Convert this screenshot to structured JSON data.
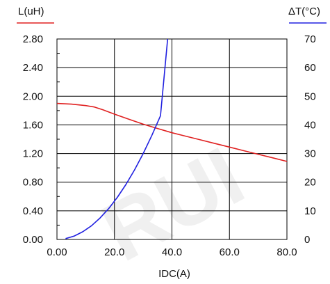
{
  "chart_data": {
    "type": "line",
    "title": "",
    "xlabel": "IDC(A)",
    "ylabel_left": "L(uH)",
    "ylabel_right": "ΔT(°C)",
    "x_ticks": [
      "0.00",
      "20.0",
      "40.0",
      "60.0",
      "80.0"
    ],
    "y_left_ticks": [
      "0.00",
      "0.40",
      "0.80",
      "1.20",
      "1.60",
      "2.00",
      "2.40",
      "2.80"
    ],
    "y_right_ticks": [
      "0",
      "10",
      "20",
      "30",
      "40",
      "50",
      "60",
      "70"
    ],
    "xlim": [
      0,
      80
    ],
    "ylim_left": [
      0,
      2.8
    ],
    "ylim_right": [
      0,
      70
    ],
    "grid": true,
    "series": [
      {
        "label": "L(uH)",
        "axis": "left",
        "color": "#e02020",
        "x": [
          0,
          5,
          10,
          13,
          16,
          20,
          25,
          30,
          35,
          40,
          45,
          50,
          55,
          60,
          65,
          70,
          75,
          80
        ],
        "y": [
          1.9,
          1.89,
          1.87,
          1.85,
          1.81,
          1.75,
          1.68,
          1.61,
          1.55,
          1.49,
          1.44,
          1.39,
          1.34,
          1.29,
          1.24,
          1.19,
          1.14,
          1.09
        ]
      },
      {
        "label": "ΔT(°C)",
        "axis": "right",
        "color": "#2020e0",
        "x": [
          3,
          6,
          9,
          12,
          15,
          18,
          21,
          24,
          27,
          30,
          33,
          36,
          38.5
        ],
        "y": [
          0.3,
          1.2,
          2.7,
          4.8,
          7.5,
          10.8,
          14.7,
          19.2,
          24.3,
          30.0,
          36.3,
          43.2,
          70
        ]
      }
    ]
  }
}
